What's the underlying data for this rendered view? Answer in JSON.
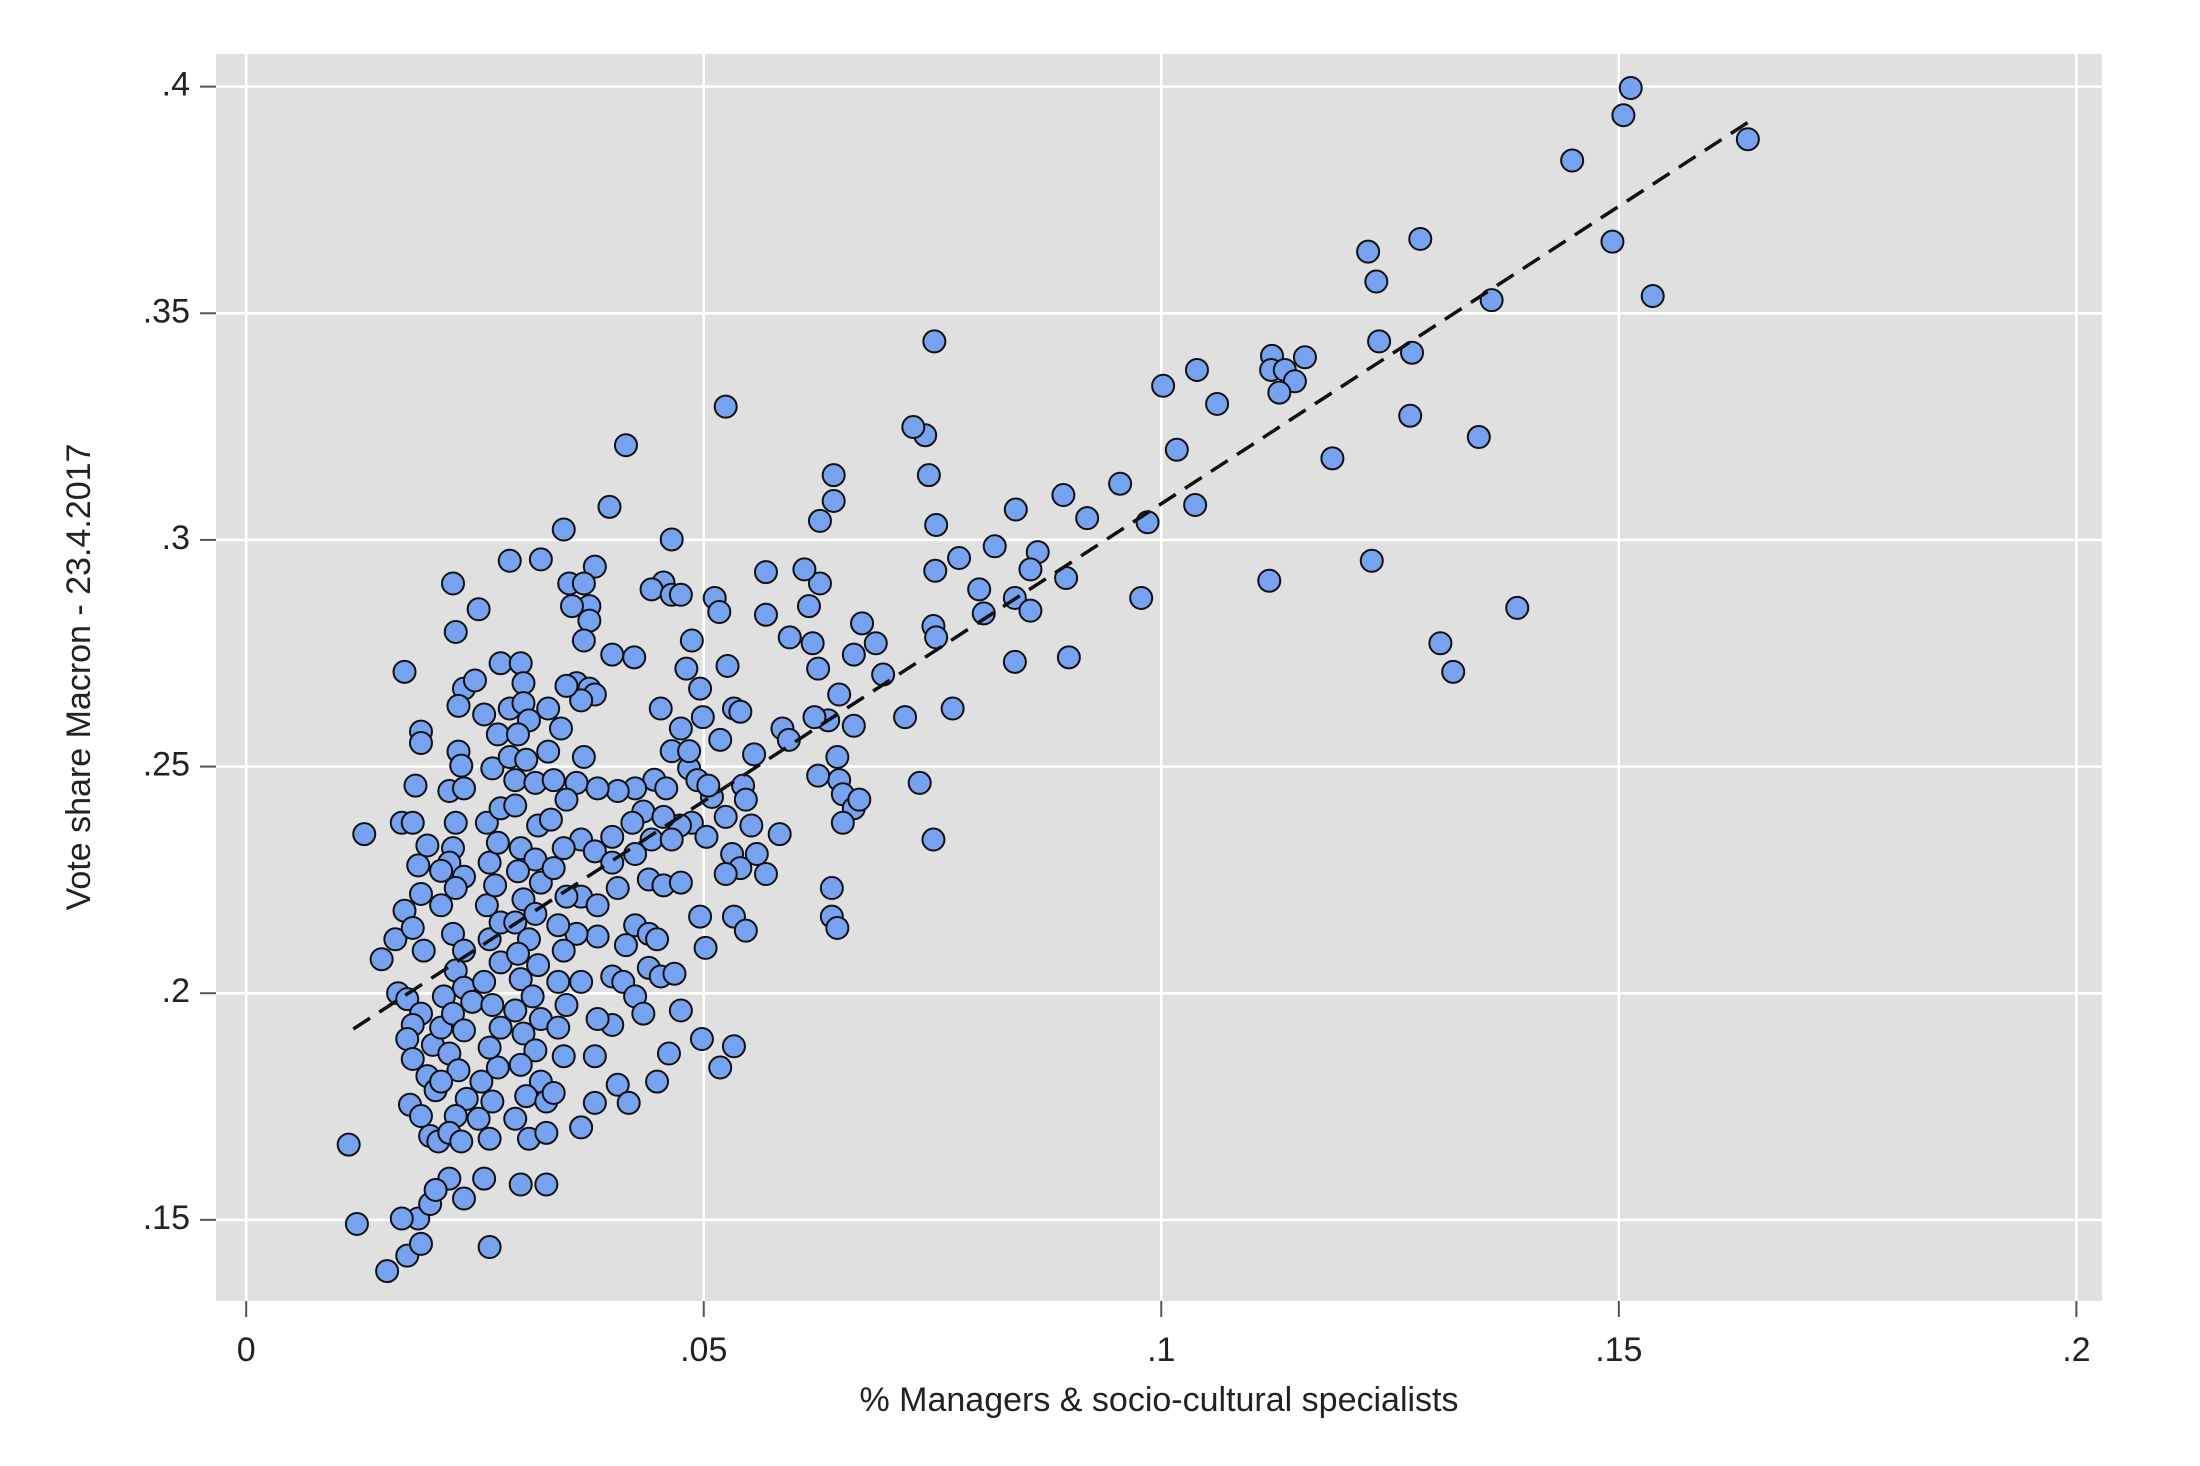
{
  "chart_data": {
    "type": "scatter",
    "x_label": "% Managers & socio-cultural specialists",
    "y_label": "Vote share Macron - 23.4.2017",
    "xlim": [
      -0.0033,
      0.2028
    ],
    "ylim": [
      0.1321,
      0.4072
    ],
    "xticks": [
      0,
      {
        "value": 0.05,
        "label": ".05"
      },
      {
        "value": 0.1,
        "label": ".1"
      },
      {
        "value": 0.15,
        "label": ".15"
      },
      {
        "value": 0.2,
        "label": ".2"
      }
    ],
    "yticks": [
      {
        "value": 0.15,
        "label": ".15"
      },
      {
        "value": 0.2,
        "label": ".2"
      },
      {
        "value": 0.25,
        "label": ".25"
      },
      {
        "value": 0.3,
        "label": ".3"
      },
      {
        "value": 0.35,
        "label": ".35"
      },
      {
        "value": 0.4,
        "label": ".4"
      }
    ],
    "grid": true,
    "color": "#76a2f0",
    "fit_line": {
      "x": [
        0.0117,
        0.1641
      ],
      "y": [
        0.1921,
        0.3921
      ]
    },
    "x": [
      0.1513,
      0.1505,
      0.1641,
      0.1449,
      0.1493,
      0.1537,
      0.1226,
      0.1283,
      0.1235,
      0.1238,
      0.1274,
      0.1361,
      0.1272,
      0.1347,
      0.123,
      0.1305,
      0.1319,
      0.1389,
      0.1118,
      0.1121,
      0.112,
      0.1135,
      0.1146,
      0.1129,
      0.1157,
      0.1187,
      0.1039,
      0.1002,
      0.1061,
      0.1017,
      0.1037,
      0.0955,
      0.0985,
      0.0978,
      0.0919,
      0.0893,
      0.0896,
      0.0899,
      0.0841,
      0.0818,
      0.0865,
      0.0857,
      0.084,
      0.0857,
      0.0801,
      0.0806,
      0.084,
      0.0772,
      0.0779,
      0.0754,
      0.0753,
      0.0752,
      0.0746,
      0.0742,
      0.0729,
      0.0751,
      0.0754,
      0.0751,
      0.0736,
      0.072,
      0.0696,
      0.0688,
      0.0673,
      0.0664,
      0.0642,
      0.0642,
      0.0627,
      0.0627,
      0.061,
      0.0615,
      0.0619,
      0.0594,
      0.0625,
      0.0648,
      0.0636,
      0.0664,
      0.0621,
      0.0646,
      0.0648,
      0.0652,
      0.0625,
      0.0664,
      0.0652,
      0.067,
      0.064,
      0.064,
      0.0646,
      0.0568,
      0.0568,
      0.0524,
      0.0512,
      0.0517,
      0.0526,
      0.0533,
      0.054,
      0.0555,
      0.0586,
      0.0593,
      0.0543,
      0.0546,
      0.0552,
      0.0524,
      0.0509,
      0.0583,
      0.0558,
      0.0531,
      0.054,
      0.0568,
      0.0524,
      0.0533,
      0.0546,
      0.0496,
      0.0502,
      0.0533,
      0.0518,
      0.0498,
      0.0475,
      0.0462,
      0.0449,
      0.0487,
      0.0481,
      0.0496,
      0.0499,
      0.0518,
      0.0484,
      0.0493,
      0.0505,
      0.0487,
      0.0503,
      0.0474,
      0.0465,
      0.0456,
      0.0443,
      0.0465,
      0.0424,
      0.0475,
      0.0415,
      0.0397,
      0.0347,
      0.0322,
      0.0381,
      0.0353,
      0.0369,
      0.0375,
      0.0356,
      0.0375,
      0.0369,
      0.04,
      0.0361,
      0.0375,
      0.0381,
      0.0366,
      0.0453,
      0.0475,
      0.0465,
      0.0484,
      0.0446,
      0.0459,
      0.0425,
      0.0406,
      0.0384,
      0.0369,
      0.0361,
      0.0434,
      0.0456,
      0.0443,
      0.0465,
      0.0422,
      0.04,
      0.0366,
      0.0381,
      0.04,
      0.0425,
      0.044,
      0.0456,
      0.0475,
      0.0406,
      0.0366,
      0.0384,
      0.0425,
      0.044,
      0.0449,
      0.0415,
      0.0384,
      0.0361,
      0.04,
      0.0412,
      0.044,
      0.0453,
      0.0468,
      0.0425,
      0.0434,
      0.04,
      0.0384,
      0.0366,
      0.0381,
      0.0406,
      0.0418,
      0.0381,
      0.0366,
      0.0112,
      0.0121,
      0.0154,
      0.0176,
      0.0191,
      0.0188,
      0.017,
      0.0201,
      0.0222,
      0.0207,
      0.0238,
      0.0266,
      0.026,
      0.03,
      0.0328,
      0.0129,
      0.0148,
      0.0163,
      0.0166,
      0.017,
      0.0173,
      0.0182,
      0.0191,
      0.0191,
      0.0185,
      0.0198,
      0.0188,
      0.0191,
      0.0173,
      0.0182,
      0.0194,
      0.0176,
      0.0191,
      0.0182,
      0.0176,
      0.0182,
      0.0198,
      0.0179,
      0.0191,
      0.0201,
      0.021,
      0.0207,
      0.0204,
      0.0213,
      0.0216,
      0.0226,
      0.0229,
      0.0254,
      0.0238,
      0.025,
      0.0232,
      0.026,
      0.0232,
      0.0235,
      0.0222,
      0.0238,
      0.0229,
      0.0226,
      0.0222,
      0.0238,
      0.0229,
      0.0213,
      0.0213,
      0.0226,
      0.0238,
      0.0229,
      0.0238,
      0.0247,
      0.0226,
      0.0238,
      0.0222,
      0.0232,
      0.0213,
      0.0241,
      0.0229,
      0.0222,
      0.0235,
      0.0266,
      0.0254,
      0.0269,
      0.0257,
      0.0275,
      0.0266,
      0.0278,
      0.0269,
      0.026,
      0.0278,
      0.0266,
      0.0278,
      0.0263,
      0.0272,
      0.0266,
      0.0275,
      0.0263,
      0.0278,
      0.0269,
      0.0288,
      0.0275,
      0.0288,
      0.0278,
      0.0288,
      0.03,
      0.0303,
      0.0303,
      0.0309,
      0.0297,
      0.0306,
      0.0294,
      0.0316,
      0.0294,
      0.0319,
      0.03,
      0.0316,
      0.0297,
      0.0322,
      0.0303,
      0.0316,
      0.0294,
      0.0309,
      0.0297,
      0.0319,
      0.03,
      0.0313,
      0.0294,
      0.0322,
      0.0303,
      0.0316,
      0.03,
      0.0322,
      0.0306,
      0.0328,
      0.0294,
      0.0309,
      0.0328,
      0.0336,
      0.0347,
      0.0341,
      0.035,
      0.0341,
      0.0347,
      0.0341,
      0.035,
      0.0336,
      0.0347,
      0.0333,
      0.035,
      0.0336,
      0.033,
      0.0344,
      0.033,
      0.035
    ],
    "y": [
      0.3997,
      0.3937,
      0.3884,
      0.3837,
      0.3658,
      0.3538,
      0.3636,
      0.3664,
      0.357,
      0.3438,
      0.3413,
      0.3529,
      0.3274,
      0.3227,
      0.2954,
      0.2772,
      0.2709,
      0.285,
      0.291,
      0.3406,
      0.3375,
      0.3375,
      0.335,
      0.3325,
      0.3403,
      0.318,
      0.3375,
      0.334,
      0.33,
      0.3199,
      0.3077,
      0.3124,
      0.3039,
      0.2872,
      0.3048,
      0.3099,
      0.2916,
      0.2741,
      0.3067,
      0.2986,
      0.2973,
      0.2935,
      0.2872,
      0.2844,
      0.2891,
      0.2838,
      0.2731,
      0.2628,
      0.296,
      0.3033,
      0.2932,
      0.3438,
      0.3143,
      0.3231,
      0.3249,
      0.281,
      0.2785,
      0.2339,
      0.2464,
      0.2609,
      0.2703,
      0.2772,
      0.2816,
      0.2747,
      0.3143,
      0.3086,
      0.3042,
      0.2904,
      0.2935,
      0.2854,
      0.2772,
      0.2785,
      0.2716,
      0.2659,
      0.2602,
      0.259,
      0.2609,
      0.2521,
      0.247,
      0.2439,
      0.248,
      0.2408,
      0.2376,
      0.2427,
      0.2232,
      0.2169,
      0.2144,
      0.2929,
      0.2835,
      0.3294,
      0.2872,
      0.2841,
      0.2722,
      0.2628,
      0.2621,
      0.2527,
      0.2584,
      0.2559,
      0.2458,
      0.2427,
      0.237,
      0.2389,
      0.2433,
      0.2351,
      0.2307,
      0.2307,
      0.2276,
      0.2263,
      0.2263,
      0.2169,
      0.2138,
      0.2169,
      0.21,
      0.1883,
      0.1836,
      0.1899,
      0.1962,
      0.1867,
      0.1805,
      0.2778,
      0.2716,
      0.2672,
      0.2609,
      0.2559,
      0.2496,
      0.247,
      0.2458,
      0.2376,
      0.2345,
      0.237,
      0.3001,
      0.2906,
      0.2891,
      0.2879,
      0.2741,
      0.2879,
      0.3209,
      0.3073,
      0.3023,
      0.2957,
      0.2941,
      0.2904,
      0.2904,
      0.2854,
      0.2854,
      0.2822,
      0.2778,
      0.2747,
      0.2684,
      0.2672,
      0.2659,
      0.2646,
      0.2628,
      0.2584,
      0.2534,
      0.2534,
      0.2471,
      0.2452,
      0.2452,
      0.2446,
      0.2452,
      0.2521,
      0.2464,
      0.2401,
      0.2389,
      0.2339,
      0.2339,
      0.2376,
      0.2345,
      0.2339,
      0.2313,
      0.2288,
      0.2307,
      0.2251,
      0.2238,
      0.2244,
      0.2232,
      0.2213,
      0.2194,
      0.215,
      0.2131,
      0.2119,
      0.2106,
      0.2125,
      0.2131,
      0.2037,
      0.2025,
      0.2056,
      0.2037,
      0.2043,
      0.1993,
      0.1955,
      0.193,
      0.1943,
      0.2025,
      0.1861,
      0.1798,
      0.1758,
      0.1758,
      0.1704,
      0.1666,
      0.1491,
      0.1387,
      0.1421,
      0.1447,
      0.1503,
      0.1503,
      0.1535,
      0.1591,
      0.1566,
      0.1547,
      0.144,
      0.1591,
      0.1578,
      0.1578,
      0.2351,
      0.2075,
      0.2119,
      0.2,
      0.2376,
      0.2709,
      0.2376,
      0.2577,
      0.2552,
      0.2458,
      0.2326,
      0.2282,
      0.2219,
      0.2182,
      0.2144,
      0.2094,
      0.1987,
      0.1955,
      0.193,
      0.1899,
      0.1855,
      0.1817,
      0.1754,
      0.1729,
      0.1685,
      0.1673,
      0.1786,
      0.1886,
      0.1924,
      0.1993,
      0.2904,
      0.2797,
      0.2847,
      0.2672,
      0.269,
      0.2634,
      0.2615,
      0.2533,
      0.2502,
      0.2446,
      0.2452,
      0.2376,
      0.232,
      0.2288,
      0.2257,
      0.2232,
      0.227,
      0.2194,
      0.2131,
      0.2094,
      0.205,
      0.2012,
      0.1981,
      0.1955,
      0.1918,
      0.1867,
      0.183,
      0.1805,
      0.1767,
      0.1729,
      0.1692,
      0.1673,
      0.1679,
      0.1723,
      0.1761,
      0.1805,
      0.1836,
      0.188,
      0.1924,
      0.1974,
      0.2025,
      0.2068,
      0.2119,
      0.2156,
      0.2194,
      0.2238,
      0.2288,
      0.2332,
      0.2376,
      0.2408,
      0.2496,
      0.2521,
      0.2571,
      0.2628,
      0.2728,
      0.2954,
      0.2728,
      0.2684,
      0.264,
      0.2602,
      0.2571,
      0.2515,
      0.247,
      0.2464,
      0.2414,
      0.237,
      0.232,
      0.2295,
      0.2269,
      0.2244,
      0.2207,
      0.2175,
      0.2156,
      0.2119,
      0.2087,
      0.2062,
      0.2031,
      0.1993,
      0.1962,
      0.1943,
      0.1911,
      0.1874,
      0.1842,
      0.1805,
      0.1773,
      0.1761,
      0.1723,
      0.1679,
      0.1692,
      0.178,
      0.1861,
      0.1924,
      0.1974,
      0.2025,
      0.2094,
      0.215,
      0.2213,
      0.2276,
      0.232,
      0.2383,
      0.2427,
      0.247,
      0.2533,
      0.2584,
      0.2628,
      0.2678
    ]
  }
}
